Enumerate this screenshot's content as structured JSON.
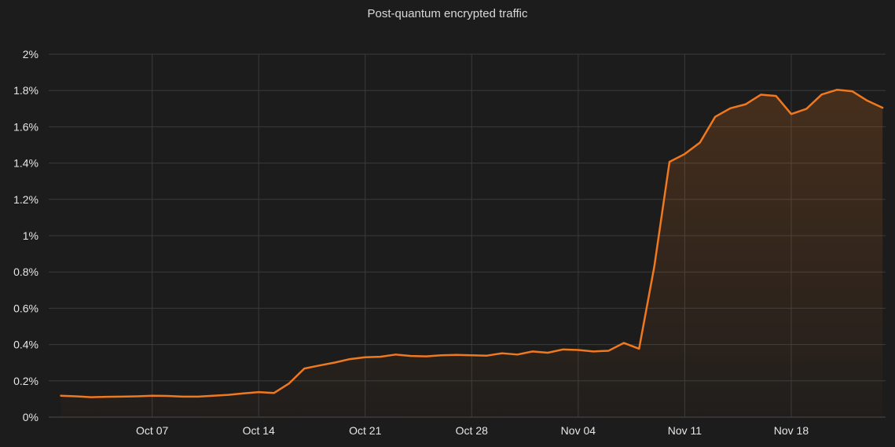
{
  "chart_data": {
    "type": "area",
    "title": "Post-quantum encrypted traffic",
    "xlabel": "",
    "ylabel": "",
    "x_tick_labels": [
      "Oct 07",
      "Oct 14",
      "Oct 21",
      "Oct 28",
      "Nov 04",
      "Nov 11",
      "Nov 18"
    ],
    "y_tick_labels": [
      "0%",
      "0.2%",
      "0.4%",
      "0.6%",
      "0.8%",
      "1%",
      "1.2%",
      "1.4%",
      "1.6%",
      "1.8%",
      "2%"
    ],
    "ylim": [
      0,
      2
    ],
    "grid": true,
    "legend": "none",
    "colors": {
      "background": "#1c1c1c",
      "line": "#f0781e",
      "grid": "#3a3a3a",
      "text": "#e6e6e6"
    },
    "series": [
      {
        "x": [
          "2023-10-01",
          "2023-10-02",
          "2023-10-03",
          "2023-10-04",
          "2023-10-05",
          "2023-10-06",
          "2023-10-07",
          "2023-10-08",
          "2023-10-09",
          "2023-10-10",
          "2023-10-11",
          "2023-10-12",
          "2023-10-13",
          "2023-10-14",
          "2023-10-15",
          "2023-10-16",
          "2023-10-17",
          "2023-10-18",
          "2023-10-19",
          "2023-10-20",
          "2023-10-21",
          "2023-10-22",
          "2023-10-23",
          "2023-10-24",
          "2023-10-25",
          "2023-10-26",
          "2023-10-27",
          "2023-10-28",
          "2023-10-29",
          "2023-10-30",
          "2023-10-31",
          "2023-11-01",
          "2023-11-02",
          "2023-11-03",
          "2023-11-04",
          "2023-11-05",
          "2023-11-06",
          "2023-11-07",
          "2023-11-08",
          "2023-11-09",
          "2023-11-10",
          "2023-11-11",
          "2023-11-12",
          "2023-11-13",
          "2023-11-14",
          "2023-11-15",
          "2023-11-16",
          "2023-11-17",
          "2023-11-18",
          "2023-11-19",
          "2023-11-20",
          "2023-11-21",
          "2023-11-22",
          "2023-11-23",
          "2023-11-24"
        ],
        "values": [
          0.118,
          0.115,
          0.11,
          0.112,
          0.113,
          0.115,
          0.118,
          0.117,
          0.113,
          0.113,
          0.118,
          0.123,
          0.131,
          0.138,
          0.133,
          0.186,
          0.268,
          0.285,
          0.301,
          0.32,
          0.33,
          0.333,
          0.345,
          0.337,
          0.335,
          0.341,
          0.343,
          0.341,
          0.339,
          0.352,
          0.345,
          0.362,
          0.355,
          0.373,
          0.37,
          0.362,
          0.366,
          0.409,
          0.377,
          0.83,
          1.407,
          1.45,
          1.513,
          1.655,
          1.702,
          1.724,
          1.777,
          1.77,
          1.67,
          1.699,
          1.778,
          1.804,
          1.796,
          1.744,
          1.705
        ]
      }
    ]
  }
}
